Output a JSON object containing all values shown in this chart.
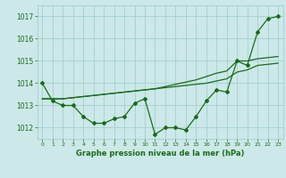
{
  "title": "Graphe pression niveau de la mer (hPa)",
  "bg_color": "#cce8e8",
  "grid_color": "#99cccc",
  "line_color": "#1a6b1a",
  "ylim": [
    1011.5,
    1017.5
  ],
  "yticks": [
    1012,
    1013,
    1014,
    1015,
    1016,
    1017
  ],
  "xlim": [
    -0.5,
    23.5
  ],
  "xticks": [
    0,
    1,
    2,
    3,
    4,
    5,
    6,
    7,
    8,
    9,
    10,
    11,
    12,
    13,
    14,
    15,
    16,
    17,
    18,
    19,
    20,
    21,
    22,
    23
  ],
  "series_main": [
    1014.0,
    1013.2,
    1013.0,
    1013.0,
    1012.5,
    1012.2,
    1012.2,
    1012.4,
    1012.5,
    1013.1,
    1013.3,
    1011.7,
    1012.0,
    1012.0,
    1011.9,
    1012.5,
    1013.2,
    1013.7,
    1013.6,
    1015.0,
    1014.8,
    1016.3,
    1016.9,
    1017.0
  ],
  "series_trend1": [
    1013.3,
    1013.3,
    1013.3,
    1013.35,
    1013.4,
    1013.45,
    1013.5,
    1013.55,
    1013.6,
    1013.65,
    1013.7,
    1013.75,
    1013.8,
    1013.85,
    1013.9,
    1013.95,
    1014.0,
    1014.1,
    1014.2,
    1014.5,
    1014.6,
    1014.8,
    1014.85,
    1014.9
  ],
  "series_trend2": [
    1013.3,
    1013.3,
    1013.3,
    1013.35,
    1013.4,
    1013.45,
    1013.5,
    1013.55,
    1013.6,
    1013.65,
    1013.7,
    1013.75,
    1013.85,
    1013.95,
    1014.05,
    1014.15,
    1014.3,
    1014.45,
    1014.55,
    1015.0,
    1015.0,
    1015.1,
    1015.15,
    1015.2
  ]
}
